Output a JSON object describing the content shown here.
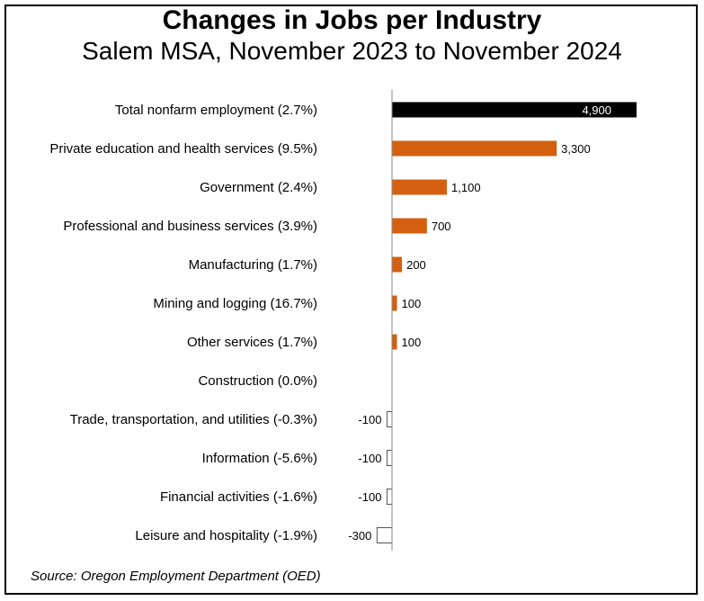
{
  "title": "Changes in Jobs per Industry",
  "subtitle": "Salem MSA, November 2023 to November 2024",
  "source": "Source: Oregon Employment Department (OED)",
  "colors": {
    "total": "#000000",
    "positive": "#d4600f",
    "negative": "#ffffff",
    "negative_stroke": "#555555"
  },
  "chart_data": {
    "type": "bar",
    "orientation": "horizontal",
    "categories": [
      "Total nonfarm employment (2.7%)",
      "Private education and health services (9.5%)",
      "Government (2.4%)",
      "Professional and business services (3.9%)",
      "Manufacturing (1.7%)",
      "Mining and logging (16.7%)",
      "Other services (1.7%)",
      "Construction (0.0%)",
      "Trade, transportation, and utilities (-0.3%)",
      "Information (-5.6%)",
      "Financial activities (-1.6%)",
      "Leisure and hospitality (-1.9%)"
    ],
    "values": [
      4900,
      3300,
      1100,
      700,
      200,
      100,
      100,
      0,
      -100,
      -100,
      -100,
      -300
    ],
    "data_labels": [
      "4,900",
      "3,300",
      "1,100",
      "700",
      "200",
      "100",
      "100",
      "",
      "-100",
      "-100",
      "-100",
      "-300"
    ],
    "xlim": [
      -300,
      4900
    ],
    "grid": false,
    "legend": "none"
  }
}
